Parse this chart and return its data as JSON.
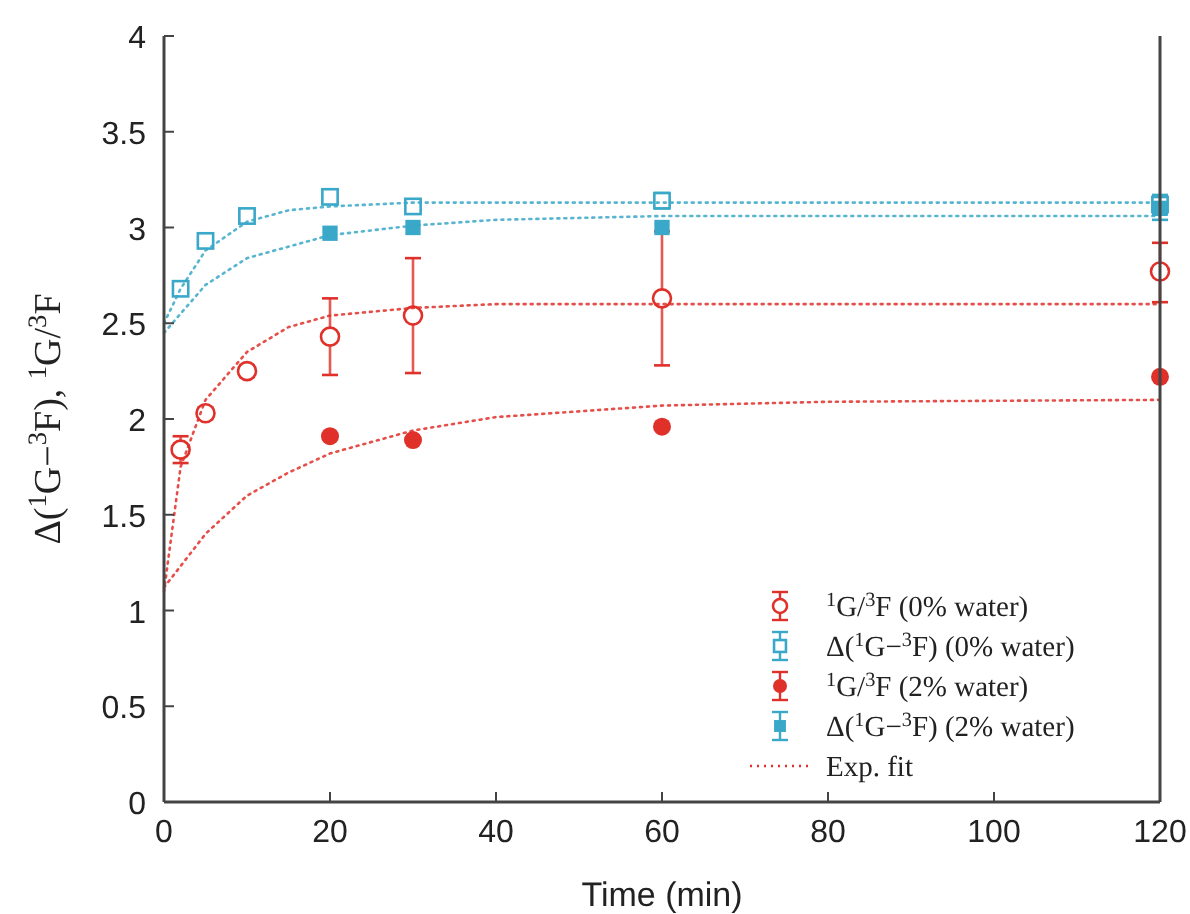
{
  "chart_data": {
    "type": "scatter",
    "xlabel": "Time (min)",
    "ylabel": "Δ($^{1}$G−$^{3}$F), $^{1}$G/$^{3}$F",
    "xlim": [
      0,
      120
    ],
    "ylim": [
      0,
      4
    ],
    "xticks": [
      0,
      20,
      40,
      60,
      80,
      100,
      120
    ],
    "yticks": [
      0,
      0.5,
      1,
      1.5,
      2,
      2.5,
      3,
      3.5,
      4
    ],
    "legend": "bottom right",
    "grid": false,
    "series": [
      {
        "name": "$^{1}$G/$^{3}$F (0% water)",
        "color": "#e0302a",
        "marker": "circle-open",
        "x": [
          2,
          5,
          10,
          20,
          30,
          60,
          120
        ],
        "values": [
          1.84,
          2.03,
          2.25,
          2.43,
          2.54,
          2.63,
          2.77
        ],
        "errors": [
          0.07,
          0.03,
          0.03,
          0.2,
          0.3,
          0.35,
          [
            2.61,
            2.92
          ]
        ]
      },
      {
        "name": "Δ($^{1}$G−$^{3}$F) (0% water)",
        "color": "#3aa8c8",
        "marker": "square-open",
        "x": [
          2,
          5,
          10,
          20,
          30,
          60,
          120
        ],
        "values": [
          2.68,
          2.93,
          3.06,
          3.16,
          3.11,
          3.14,
          3.12
        ],
        "errors": [
          0.03,
          0.03,
          0.03,
          0.03,
          0.03,
          0.04,
          0.05
        ]
      },
      {
        "name": "$^{1}$G/$^{3}$F (2% water)",
        "color": "#e0302a",
        "marker": "circle",
        "x": [
          20,
          30,
          60,
          120
        ],
        "values": [
          1.91,
          1.89,
          1.96,
          2.22
        ]
      },
      {
        "name": "Δ($^{1}$G−$^{3}$F) (2% water)",
        "color": "#3aa8c8",
        "marker": "square",
        "x": [
          20,
          30,
          60,
          120
        ],
        "values": [
          2.97,
          3.0,
          3.0,
          3.1
        ],
        "errors": [
          null,
          null,
          null,
          0.06
        ]
      },
      {
        "name": "Exp. fit",
        "type": "line",
        "line_style": "dotted",
        "color": "#e0302a",
        "x": [
          0,
          2,
          5,
          10,
          15,
          20,
          30,
          40,
          60,
          120
        ],
        "values": [
          1.1,
          1.75,
          2.1,
          2.35,
          2.48,
          2.54,
          2.58,
          2.6,
          2.6,
          2.6
        ]
      },
      {
        "type": "line",
        "line_style": "dotted",
        "color": "#e0302a",
        "x": [
          0,
          5,
          10,
          15,
          20,
          30,
          40,
          60,
          80,
          120
        ],
        "values": [
          1.12,
          1.4,
          1.6,
          1.72,
          1.82,
          1.94,
          2.01,
          2.07,
          2.09,
          2.1
        ]
      },
      {
        "type": "line",
        "line_style": "dotted",
        "color": "#3aa8c8",
        "x": [
          0,
          2,
          5,
          10,
          15,
          20,
          30,
          120
        ],
        "values": [
          2.5,
          2.68,
          2.88,
          3.03,
          3.09,
          3.11,
          3.13,
          3.13
        ]
      },
      {
        "type": "line",
        "line_style": "dotted",
        "color": "#3aa8c8",
        "x": [
          0,
          5,
          10,
          20,
          30,
          40,
          60,
          120
        ],
        "values": [
          2.45,
          2.7,
          2.84,
          2.96,
          3.01,
          3.04,
          3.06,
          3.06
        ]
      }
    ]
  }
}
